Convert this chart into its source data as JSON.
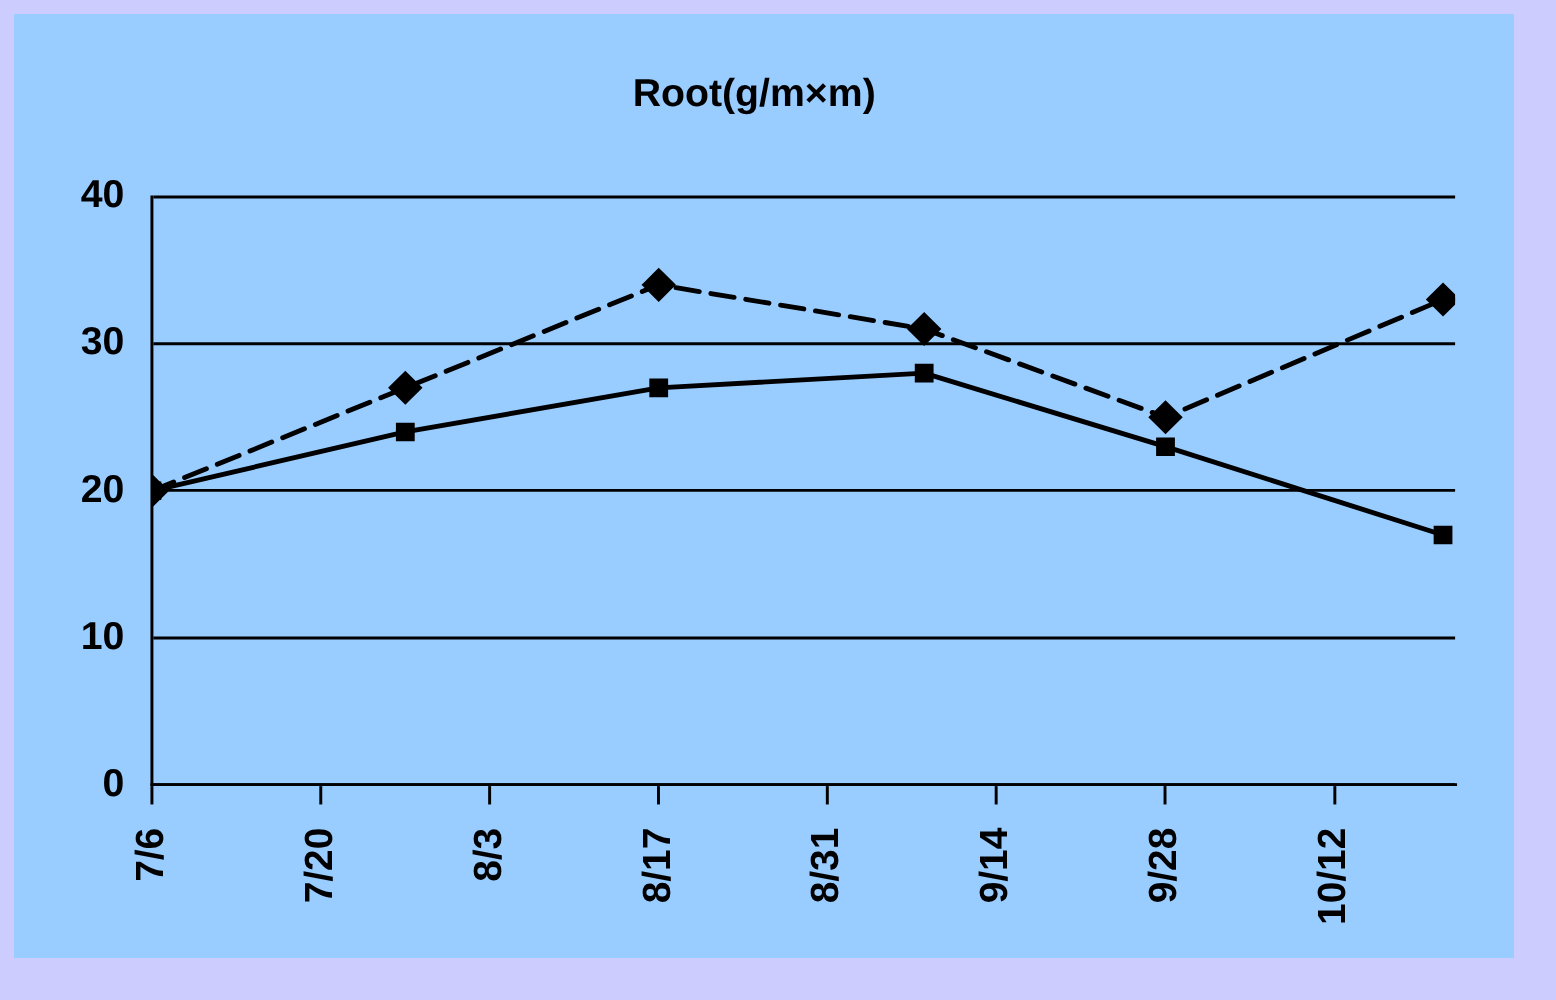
{
  "chart_data": {
    "type": "line",
    "title": "Root(g/m×m)",
    "x": [
      "--07-06",
      "--07-27",
      "--08-17",
      "--09-08",
      "--09-28",
      "--10-21"
    ],
    "series": [
      {
        "color": "#000000",
        "marker": "diamond",
        "line_style": "dashed",
        "values": [
          20,
          27,
          34,
          31,
          25,
          33
        ]
      },
      {
        "color": "#000000",
        "marker": "square",
        "line_style": "solid",
        "values": [
          20,
          24,
          27,
          28,
          23,
          17
        ]
      }
    ],
    "xlim": [
      "--07-06",
      "--10-22"
    ],
    "xticks": [
      {
        "value": "--07-06",
        "label": "7/6"
      },
      {
        "value": "--07-20",
        "label": "7/20"
      },
      {
        "value": "--08-03",
        "label": "8/3"
      },
      {
        "value": "--08-17",
        "label": "8/17"
      },
      {
        "value": "--08-31",
        "label": "8/31"
      },
      {
        "value": "--09-14",
        "label": "9/14"
      },
      {
        "value": "--09-28",
        "label": "9/28"
      },
      {
        "value": "--10-12",
        "label": "10/12"
      }
    ],
    "ylim": [
      0,
      40
    ],
    "yticks": [
      0,
      10,
      20,
      30,
      40
    ],
    "grid": "y",
    "legend": false
  }
}
